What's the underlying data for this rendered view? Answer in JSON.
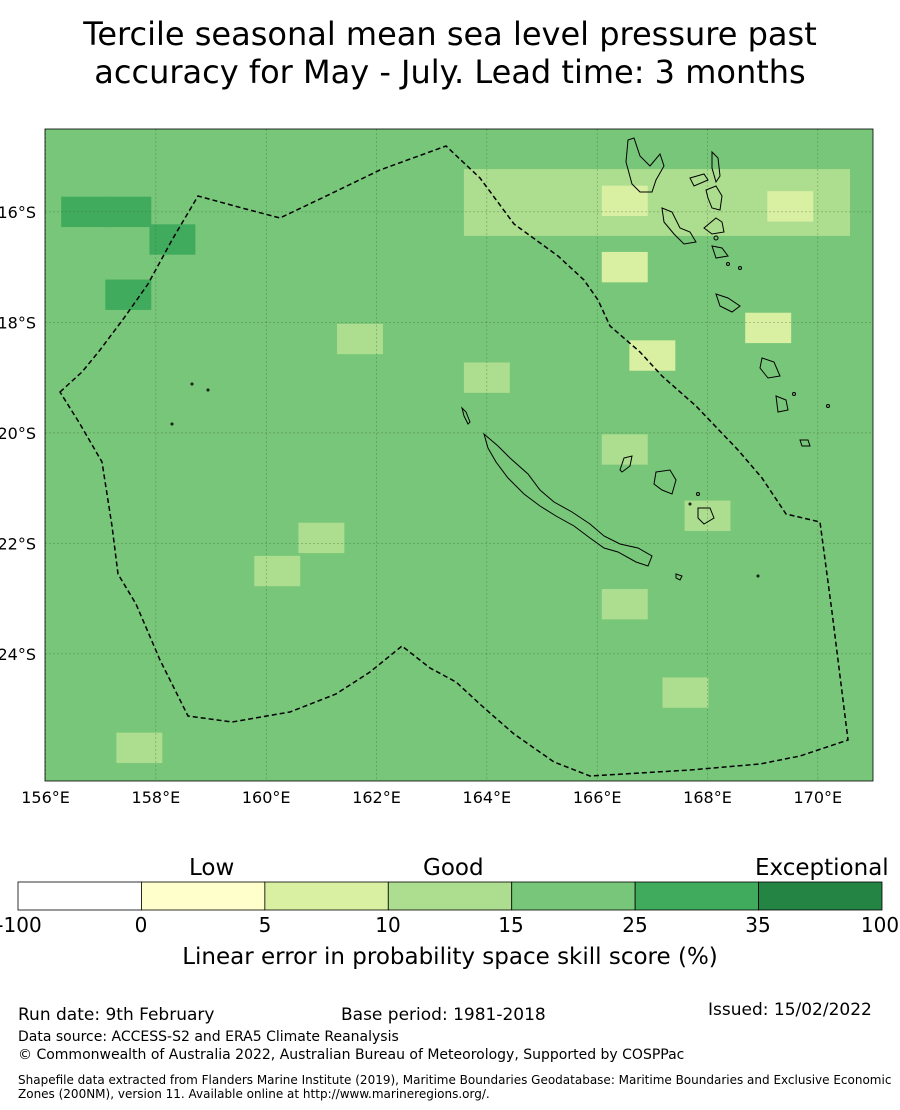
{
  "title": {
    "line1": "Tercile seasonal mean sea level pressure past",
    "line2": "accuracy for May - July. Lead time: 3 months"
  },
  "map": {
    "lon_labels": [
      "156°E",
      "158°E",
      "160°E",
      "162°E",
      "164°E",
      "166°E",
      "168°E",
      "170°E"
    ],
    "lat_labels": [
      "16°S",
      "18°S",
      "20°S",
      "22°S",
      "24°S"
    ],
    "lon_values": [
      156,
      158,
      160,
      162,
      164,
      166,
      168,
      170
    ],
    "lat_values": [
      -16,
      -18,
      -20,
      -22,
      -24
    ],
    "background_class": "15-25",
    "cells": [
      {
        "lon": 156.7,
        "lat": -16.0,
        "class": "25-35"
      },
      {
        "lon": 157.5,
        "lat": -16.0,
        "class": "25-35"
      },
      {
        "lon": 158.3,
        "lat": -16.5,
        "class": "25-35"
      },
      {
        "lon": 157.5,
        "lat": -17.5,
        "class": "25-35"
      },
      {
        "lon": 164.0,
        "lat": -15.5,
        "class": "10-15"
      },
      {
        "lon": 166.5,
        "lat": -15.8,
        "class": "5-10"
      },
      {
        "lon": 169.5,
        "lat": -15.9,
        "class": "5-10"
      },
      {
        "lon": 166.5,
        "lat": -17.0,
        "class": "5-10"
      },
      {
        "lon": 169.1,
        "lat": -18.1,
        "class": "5-10"
      },
      {
        "lon": 167.0,
        "lat": -18.6,
        "class": "5-10"
      },
      {
        "lon": 161.7,
        "lat": -18.3,
        "class": "10-15"
      },
      {
        "lon": 164.0,
        "lat": -19.0,
        "class": "10-15"
      },
      {
        "lon": 166.5,
        "lat": -20.3,
        "class": "10-15"
      },
      {
        "lon": 168.0,
        "lat": -21.5,
        "class": "10-15"
      },
      {
        "lon": 161.0,
        "lat": -21.9,
        "class": "10-15"
      },
      {
        "lon": 160.2,
        "lat": -22.5,
        "class": "10-15"
      },
      {
        "lon": 166.5,
        "lat": -23.1,
        "class": "10-15"
      },
      {
        "lon": 167.6,
        "lat": -24.7,
        "class": "10-15"
      },
      {
        "lon": 157.7,
        "lat": -25.7,
        "class": "10-15"
      }
    ],
    "eez_boundary": "Vanuatu / New Caledonia maritime boundary (EEZ, 200NM)"
  },
  "colorbar": {
    "category_low": "Low",
    "category_good": "Good",
    "category_exceptional": "Exceptional",
    "ticks": [
      "-100",
      "0",
      "5",
      "10",
      "15",
      "25",
      "35",
      "100"
    ],
    "bins": [
      "-100–0",
      "0–5",
      "5–10",
      "10–15",
      "15–25",
      "25–35",
      "35–100"
    ],
    "colors": [
      "#ffffff",
      "#ffffcc",
      "#d9f0a3",
      "#addd8e",
      "#78c679",
      "#41ab5d",
      "#238443"
    ],
    "label": "Linear error in probability space skill score (%)"
  },
  "footer": {
    "run_date": "Run date: 9th February",
    "base_period": "Base period: 1981-2018",
    "issued": "Issued: 15/02/2022",
    "data_source": "Data source: ACCESS-S2 and ERA5 Climate Reanalysis",
    "copyright": "© Commonwealth of Australia 2022, Australian Bureau of Meteorology, Supported by COSPPac",
    "shapefile": "Shapefile data extracted from Flanders Marine Institute (2019), Maritime Boundaries Geodatabase: Maritime Boundaries and Exclusive Economic Zones (200NM), version 11. Available online at http://www.marineregions.org/."
  }
}
